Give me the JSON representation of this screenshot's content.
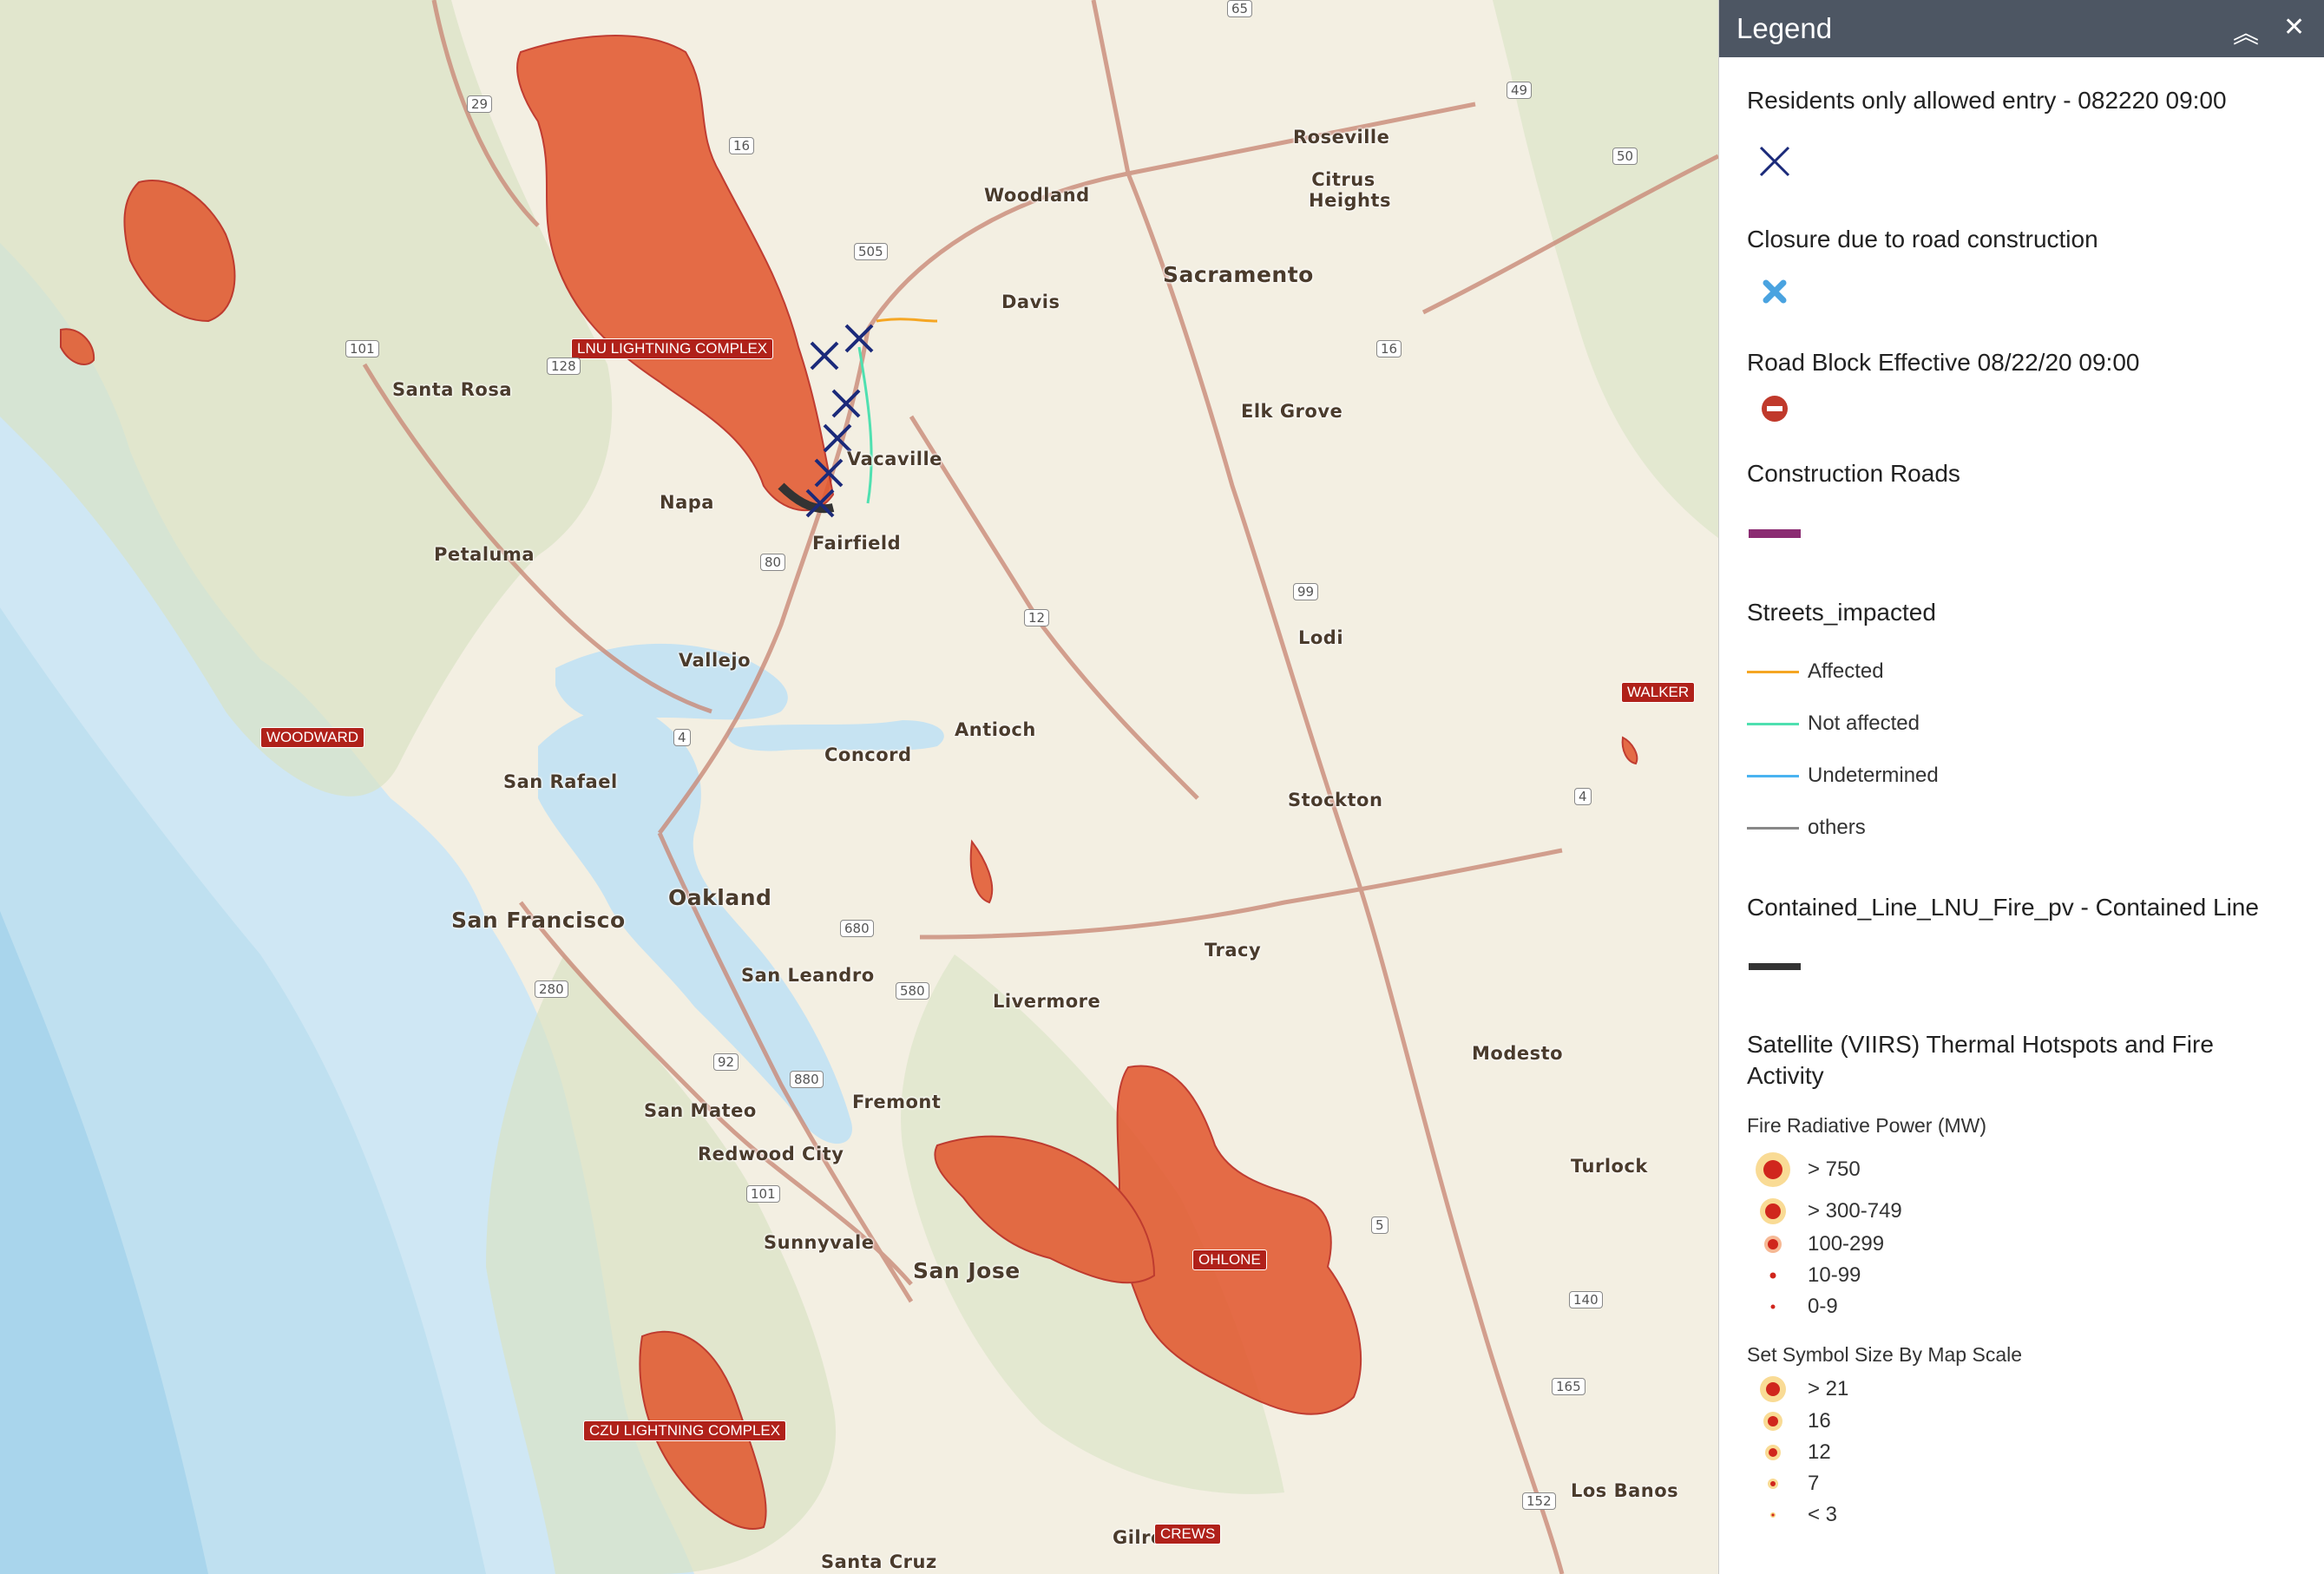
{
  "map": {
    "cities": [
      {
        "id": "roseville",
        "label": "Roseville"
      },
      {
        "id": "citrus",
        "label": "Citrus Heights"
      },
      {
        "id": "woodland",
        "label": "Woodland"
      },
      {
        "id": "sacramento",
        "label": "Sacramento"
      },
      {
        "id": "davis",
        "label": "Davis"
      },
      {
        "id": "elkgrove",
        "label": "Elk Grove"
      },
      {
        "id": "santarosa",
        "label": "Santa Rosa"
      },
      {
        "id": "napa",
        "label": "Napa"
      },
      {
        "id": "vacaville",
        "label": "Vacaville"
      },
      {
        "id": "fairfield",
        "label": "Fairfield"
      },
      {
        "id": "petaluma",
        "label": "Petaluma"
      },
      {
        "id": "vallejo",
        "label": "Vallejo"
      },
      {
        "id": "lodi",
        "label": "Lodi"
      },
      {
        "id": "antioch",
        "label": "Antioch"
      },
      {
        "id": "concord",
        "label": "Concord"
      },
      {
        "id": "sanrafael",
        "label": "San Rafael"
      },
      {
        "id": "stockton",
        "label": "Stockton"
      },
      {
        "id": "oakland",
        "label": "Oakland"
      },
      {
        "id": "sanfrancisco",
        "label": "San Francisco"
      },
      {
        "id": "sanleandro",
        "label": "San Leandro"
      },
      {
        "id": "tracy",
        "label": "Tracy"
      },
      {
        "id": "livermore",
        "label": "Livermore"
      },
      {
        "id": "modesto",
        "label": "Modesto"
      },
      {
        "id": "sanmateo",
        "label": "San Mateo"
      },
      {
        "id": "fremont",
        "label": "Fremont"
      },
      {
        "id": "redwood",
        "label": "Redwood City"
      },
      {
        "id": "turlock",
        "label": "Turlock"
      },
      {
        "id": "sunnyvale",
        "label": "Sunnyvale"
      },
      {
        "id": "sanjose",
        "label": "San Jose"
      },
      {
        "id": "losbanos",
        "label": "Los Banos"
      },
      {
        "id": "gilroy",
        "label": "Gilro"
      },
      {
        "id": "santacruz",
        "label": "Santa Cruz"
      }
    ],
    "fire_labels": [
      {
        "id": "lnu",
        "label": "LNU LIGHTNING COMPLEX"
      },
      {
        "id": "woodward",
        "label": "WOODWARD"
      },
      {
        "id": "walker",
        "label": "WALKER"
      },
      {
        "id": "ohlone",
        "label": "OHLONE"
      },
      {
        "id": "czu",
        "label": "CZU LIGHTNING COMPLEX"
      },
      {
        "id": "crews",
        "label": "CREWS"
      }
    ],
    "shields": [
      {
        "id": "s65",
        "label": "65"
      },
      {
        "id": "s49",
        "label": "49"
      },
      {
        "id": "s29",
        "label": "29"
      },
      {
        "id": "s16a",
        "label": "16"
      },
      {
        "id": "s505",
        "label": "505"
      },
      {
        "id": "s50",
        "label": "50"
      },
      {
        "id": "s101a",
        "label": "101"
      },
      {
        "id": "s128",
        "label": "128"
      },
      {
        "id": "s16b",
        "label": "16"
      },
      {
        "id": "s80",
        "label": "80"
      },
      {
        "id": "s12",
        "label": "12"
      },
      {
        "id": "s99",
        "label": "99"
      },
      {
        "id": "s4a",
        "label": "4"
      },
      {
        "id": "s4b",
        "label": "4"
      },
      {
        "id": "s680",
        "label": "680"
      },
      {
        "id": "s580",
        "label": "580"
      },
      {
        "id": "s280",
        "label": "280"
      },
      {
        "id": "s92",
        "label": "92"
      },
      {
        "id": "s880",
        "label": "880"
      },
      {
        "id": "s101b",
        "label": "101"
      },
      {
        "id": "s5",
        "label": "5"
      },
      {
        "id": "s140",
        "label": "140"
      },
      {
        "id": "s165",
        "label": "165"
      },
      {
        "id": "s152",
        "label": "152"
      }
    ]
  },
  "legend": {
    "title": "Legend",
    "sections": {
      "residents": "Residents only allowed entry - 082220 09:00",
      "closure": "Closure due to road construction",
      "roadblock": "Road Block Effective 08/22/20 09:00",
      "construction": "Construction Roads",
      "streets": "Streets_impacted",
      "contained": "Contained_Line_LNU_Fire_pv - Contained Line",
      "viirs": "Satellite (VIIRS) Thermal Hotspots and Fire Activity"
    },
    "streets_items": [
      {
        "label": "Affected",
        "color": "#f5a623"
      },
      {
        "label": "Not affected",
        "color": "#4fe0b0"
      },
      {
        "label": "Undetermined",
        "color": "#4ab3f0"
      },
      {
        "label": "others",
        "color": "#888888"
      }
    ],
    "frp_title": "Fire Radiative Power (MW)",
    "frp_items": [
      "> 750",
      "> 300-749",
      "100-299",
      "10-99",
      "0-9"
    ],
    "size_title": "Set Symbol Size By Map Scale",
    "size_items": [
      "> 21",
      "16",
      "12",
      "7",
      "< 3"
    ]
  }
}
